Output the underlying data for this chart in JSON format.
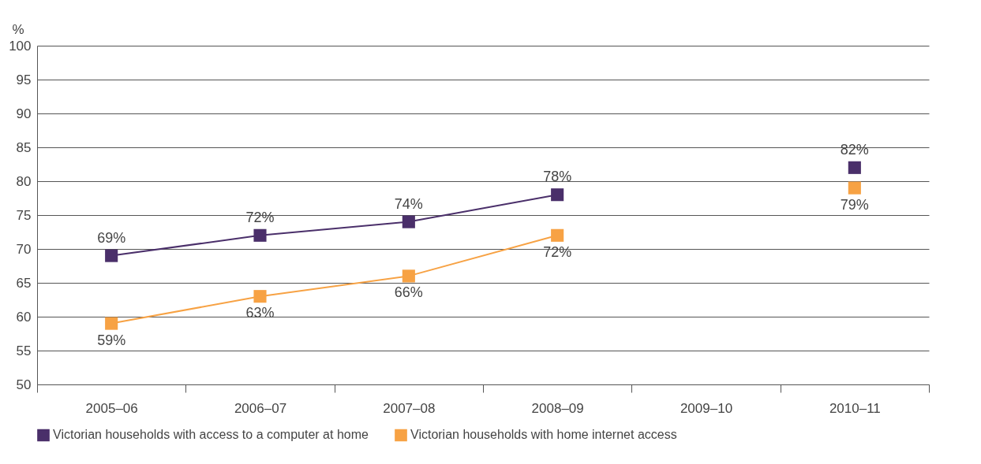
{
  "chart_data": {
    "type": "line",
    "ylabel": "%",
    "categories": [
      "2005–06",
      "2006–07",
      "2007–08",
      "2008–09",
      "2009–10",
      "2010–11"
    ],
    "ylim": [
      50,
      100
    ],
    "yticks": [
      50,
      55,
      60,
      65,
      70,
      75,
      80,
      85,
      90,
      95,
      100
    ],
    "grid": "y",
    "legend": "bottom",
    "marker": "square",
    "line_style": "solid",
    "series": [
      {
        "name": "Victorian households with access to a computer at home",
        "color": "#4a2f6a",
        "values": [
          69,
          72,
          74,
          78,
          null,
          82
        ],
        "value_labels": [
          "69%",
          "72%",
          "74%",
          "78%",
          null,
          "82%"
        ]
      },
      {
        "name": "Victorian households with home internet access",
        "color": "#f7a244",
        "values": [
          59,
          63,
          66,
          72,
          null,
          79
        ],
        "value_labels": [
          "59%",
          "63%",
          "66%",
          "72%",
          null,
          "79%"
        ]
      }
    ]
  }
}
